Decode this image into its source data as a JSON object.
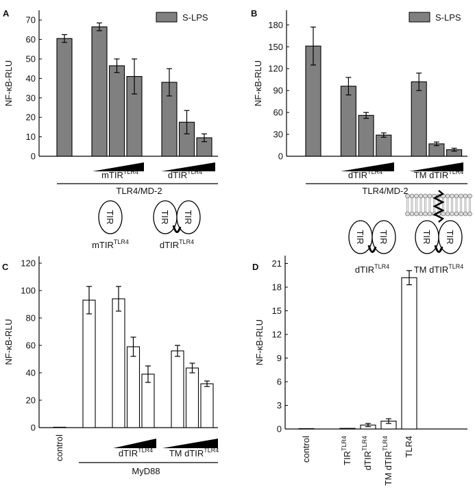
{
  "chart_data": [
    {
      "panel": "A",
      "type": "bar",
      "y_label": "NF-κB-RLU",
      "categories": [
        null,
        null,
        null,
        null,
        null,
        null,
        null,
        null,
        null
      ],
      "series": [
        {
          "name": "S-LPS",
          "color": "#808080",
          "values": [
            60.5,
            null,
            66.5,
            46.5,
            41,
            null,
            38,
            17.5,
            9.5
          ],
          "errors": [
            2,
            null,
            2,
            3.5,
            9,
            null,
            7,
            6,
            2
          ]
        }
      ],
      "ylim": [
        0,
        75
      ],
      "yticks": [
        0,
        10,
        20,
        30,
        40,
        50,
        60,
        70
      ],
      "legend": "top-right",
      "annotations": [
        {
          "text": "mTIR",
          "sup": "TLR4"
        },
        {
          "text": "dTIR",
          "sup": "TLR4"
        },
        {
          "text": "TLR4/MD-2"
        }
      ],
      "diagrams": [
        {
          "text": "TIR",
          "label": "mTIR",
          "sup": "TLR4"
        },
        {
          "text": "TIR",
          "label": "dTIR",
          "sup": "TLR4"
        }
      ]
    },
    {
      "panel": "B",
      "type": "bar",
      "y_label": "NF-κB-RLU",
      "categories": [
        null,
        null,
        null,
        null,
        null,
        null,
        null,
        null,
        null
      ],
      "series": [
        {
          "name": "S-LPS",
          "color": "#808080",
          "values": [
            151,
            null,
            96,
            56,
            29,
            null,
            102,
            17,
            9
          ],
          "errors": [
            26,
            null,
            12,
            4,
            3,
            null,
            12,
            2.5,
            2
          ]
        }
      ],
      "ylim": [
        0,
        200
      ],
      "yticks": [
        0,
        30,
        60,
        90,
        120,
        150,
        180
      ],
      "legend": "top-right",
      "annotations": [
        {
          "text": "dTIR",
          "sup": "TLR4"
        },
        {
          "text": "TM dTIR",
          "sup": "TLR4"
        },
        {
          "text": "TLR4/MD-2"
        }
      ],
      "diagrams": [
        {
          "text": "TIR",
          "label": "dTIR",
          "sup": "TLR4"
        },
        {
          "text": "TIR",
          "label": "TM dTIR",
          "sup": "TLR4"
        }
      ]
    },
    {
      "panel": "C",
      "type": "bar",
      "y_label": "NF-κB-RLU",
      "categories": [
        "control",
        null,
        null,
        null,
        null,
        null,
        null,
        null,
        null,
        null,
        null
      ],
      "series": [
        {
          "color": "#ffffff",
          "values": [
            0.3,
            null,
            93,
            null,
            94,
            59,
            39,
            null,
            56,
            43.5,
            32
          ],
          "errors": [
            null,
            null,
            10,
            null,
            9,
            7,
            6,
            null,
            4,
            3.5,
            2
          ]
        }
      ],
      "ylim": [
        0,
        125
      ],
      "yticks": [
        0,
        20,
        40,
        60,
        80,
        100,
        120
      ],
      "annotations": [
        {
          "text": "dTIR",
          "sup": "TLR4"
        },
        {
          "text": "TM dTIR",
          "sup": "TLR4"
        },
        {
          "text": "MyD88"
        }
      ]
    },
    {
      "panel": "D",
      "type": "bar",
      "y_label": "NF-κB-RLU",
      "categories": [
        "control",
        null,
        "TIR",
        "dTIR",
        "TM dTIR",
        "TLR4"
      ],
      "category_superscripts": [
        null,
        null,
        "TLR4",
        "TLR4",
        "TLR4",
        null
      ],
      "series": [
        {
          "color": "#ffffff",
          "values": [
            0.05,
            null,
            0.08,
            0.5,
            1.0,
            19.2
          ],
          "errors": [
            null,
            null,
            null,
            0.2,
            0.3,
            0.9
          ]
        }
      ],
      "ylim": [
        0,
        22
      ],
      "yticks": [
        0,
        3,
        6,
        9,
        12,
        15,
        18,
        21
      ]
    }
  ]
}
